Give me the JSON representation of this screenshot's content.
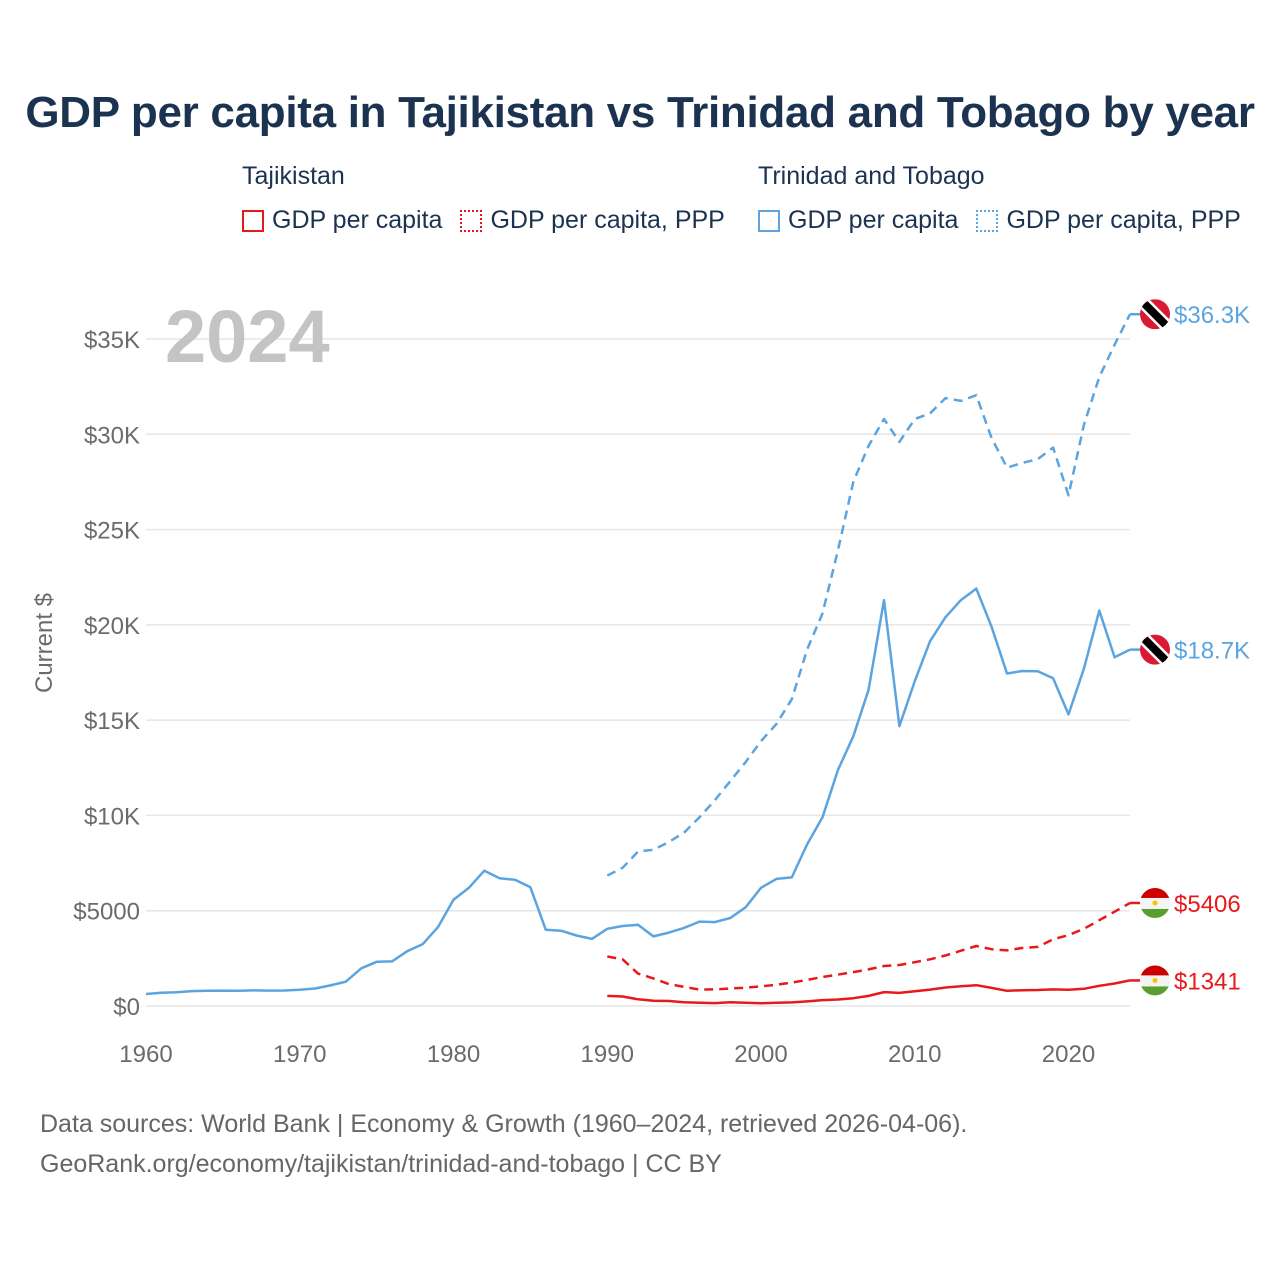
{
  "title": "GDP per capita in Tajikistan vs Trinidad and Tobago by year",
  "legend": {
    "tajikistan": {
      "name": "Tajikistan",
      "gdp_label": "GDP per capita",
      "ppp_label": "GDP per capita, PPP",
      "color": "#e8191b"
    },
    "trinidad": {
      "name": "Trinidad and Tobago",
      "gdp_label": "GDP per capita",
      "ppp_label": "GDP per capita, PPP",
      "color": "#5ba4e0"
    }
  },
  "year_watermark": "2024",
  "footer": {
    "line1": "Data sources: World Bank | Economy & Growth (1960–2024, retrieved 2026-04-06).",
    "line2": "GeoRank.org/economy/tajikistan/trinidad-and-tobago | CC BY"
  },
  "chart_data": {
    "type": "line",
    "title": "GDP per capita in Tajikistan vs Trinidad and Tobago by year",
    "xlabel": "",
    "ylabel": "Current $",
    "xlim": [
      1960,
      2024
    ],
    "ylim": [
      0,
      35000
    ],
    "x_ticks": [
      1960,
      1970,
      1980,
      1990,
      2000,
      2010,
      2020
    ],
    "y_ticks": [
      0,
      5000,
      10000,
      15000,
      20000,
      25000,
      30000,
      35000
    ],
    "y_tick_labels": [
      "$0",
      "$5000",
      "$10K",
      "$15K",
      "$20K",
      "$25K",
      "$30K",
      "$35K"
    ],
    "grid": true,
    "series": [
      {
        "name": "Trinidad and Tobago GDP per capita",
        "color": "#5ba4e0",
        "style": "solid",
        "end_label": "$18.7K",
        "x": [
          1960,
          1961,
          1962,
          1963,
          1964,
          1965,
          1966,
          1967,
          1968,
          1969,
          1970,
          1971,
          1972,
          1973,
          1974,
          1975,
          1976,
          1977,
          1978,
          1979,
          1980,
          1981,
          1982,
          1983,
          1984,
          1985,
          1986,
          1987,
          1988,
          1989,
          1990,
          1991,
          1992,
          1993,
          1994,
          1995,
          1996,
          1997,
          1998,
          1999,
          2000,
          2001,
          2002,
          2003,
          2004,
          2005,
          2006,
          2007,
          2008,
          2009,
          2010,
          2011,
          2012,
          2013,
          2014,
          2015,
          2016,
          2017,
          2018,
          2019,
          2020,
          2021,
          2022,
          2023,
          2024
        ],
        "values": [
          630,
          700,
          720,
          780,
          800,
          810,
          800,
          820,
          810,
          815,
          850,
          920,
          1080,
          1280,
          1980,
          2320,
          2340,
          2880,
          3250,
          4150,
          5580,
          6200,
          7100,
          6700,
          6620,
          6230,
          4000,
          3950,
          3700,
          3520,
          4050,
          4200,
          4260,
          3650,
          3850,
          4100,
          4430,
          4400,
          4620,
          5180,
          6200,
          6670,
          6750,
          8480,
          9900,
          12380,
          14150,
          16600,
          21300,
          14690,
          17050,
          19150,
          20400,
          21300,
          21900,
          19900,
          17450,
          17580,
          17570,
          17200,
          15300,
          17700,
          20750,
          18300,
          18700
        ]
      },
      {
        "name": "Trinidad and Tobago GDP per capita, PPP",
        "color": "#5ba4e0",
        "style": "dashed",
        "end_label": "$36.3K",
        "x": [
          1990,
          1991,
          1992,
          1993,
          1994,
          1995,
          1996,
          1997,
          1998,
          1999,
          2000,
          2001,
          2002,
          2003,
          2004,
          2005,
          2006,
          2007,
          2008,
          2009,
          2010,
          2011,
          2012,
          2013,
          2014,
          2015,
          2016,
          2017,
          2018,
          2019,
          2020,
          2021,
          2022,
          2023,
          2024
        ],
        "values": [
          6850,
          7250,
          8100,
          8200,
          8600,
          9100,
          9900,
          10800,
          11800,
          12800,
          13900,
          14800,
          16100,
          18700,
          20600,
          23900,
          27500,
          29400,
          30800,
          29600,
          30800,
          31100,
          31900,
          31750,
          32050,
          29800,
          28250,
          28500,
          28700,
          29300,
          26800,
          30500,
          33000,
          34700,
          36300
        ]
      },
      {
        "name": "Tajikistan GDP per capita",
        "color": "#e8191b",
        "style": "solid",
        "end_label": "$1341",
        "x": [
          1990,
          1991,
          1992,
          1993,
          1994,
          1995,
          1996,
          1997,
          1998,
          1999,
          2000,
          2001,
          2002,
          2003,
          2004,
          2005,
          2006,
          2007,
          2008,
          2009,
          2010,
          2011,
          2012,
          2013,
          2014,
          2015,
          2016,
          2017,
          2018,
          2019,
          2020,
          2021,
          2022,
          2023,
          2024
        ],
        "values": [
          530,
          500,
          350,
          280,
          260,
          200,
          170,
          150,
          200,
          170,
          140,
          170,
          190,
          240,
          310,
          340,
          410,
          530,
          730,
          690,
          770,
          860,
          970,
          1040,
          1090,
          950,
          800,
          830,
          840,
          870,
          850,
          900,
          1060,
          1180,
          1341
        ]
      },
      {
        "name": "Tajikistan GDP per capita, PPP",
        "color": "#e8191b",
        "style": "dashed",
        "end_label": "$5406",
        "x": [
          1990,
          1991,
          1992,
          1993,
          1994,
          1995,
          1996,
          1997,
          1998,
          1999,
          2000,
          2001,
          2002,
          2003,
          2004,
          2005,
          2006,
          2007,
          2008,
          2009,
          2010,
          2011,
          2012,
          2013,
          2014,
          2015,
          2016,
          2017,
          2018,
          2019,
          2020,
          2021,
          2022,
          2023,
          2024
        ],
        "values": [
          2600,
          2450,
          1700,
          1450,
          1150,
          1000,
          860,
          870,
          920,
          960,
          1030,
          1120,
          1230,
          1370,
          1520,
          1650,
          1780,
          1920,
          2100,
          2150,
          2300,
          2450,
          2650,
          2900,
          3150,
          2980,
          2920,
          3050,
          3100,
          3500,
          3720,
          4050,
          4500,
          4950,
          5406
        ]
      }
    ]
  }
}
